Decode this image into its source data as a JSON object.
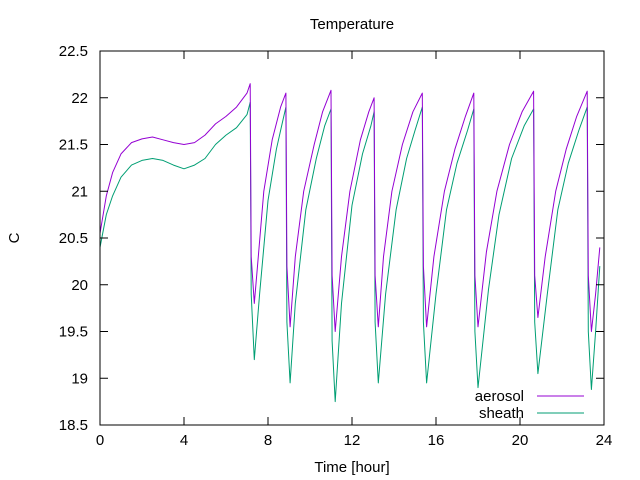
{
  "chart_data": {
    "type": "line",
    "title": "Temperature",
    "xlabel": "Time [hour]",
    "ylabel": "C",
    "xlim": [
      0,
      24
    ],
    "ylim": [
      18.5,
      22.5
    ],
    "xticks": [
      0,
      4,
      8,
      12,
      16,
      20,
      24
    ],
    "yticks": [
      18.5,
      19,
      19.5,
      20,
      20.5,
      21,
      21.5,
      22,
      22.5
    ],
    "xtick_labels": [
      "0",
      "4",
      "8",
      "12",
      "16",
      "20",
      "24"
    ],
    "ytick_labels": [
      "18.5",
      "19",
      "19.5",
      "20",
      "20.5",
      "21",
      "21.5",
      "22",
      "22.5"
    ],
    "grid": false,
    "legend_position": "bottom-right",
    "series": [
      {
        "name": "aerosol",
        "color": "#9400d3",
        "points": [
          [
            0.0,
            20.55
          ],
          [
            0.3,
            20.95
          ],
          [
            0.6,
            21.2
          ],
          [
            1.0,
            21.4
          ],
          [
            1.5,
            21.52
          ],
          [
            2.0,
            21.56
          ],
          [
            2.5,
            21.58
          ],
          [
            3.0,
            21.55
          ],
          [
            3.5,
            21.52
          ],
          [
            4.0,
            21.5
          ],
          [
            4.5,
            21.52
          ],
          [
            5.0,
            21.6
          ],
          [
            5.5,
            21.72
          ],
          [
            6.0,
            21.8
          ],
          [
            6.5,
            21.9
          ],
          [
            7.0,
            22.05
          ],
          [
            7.15,
            22.15
          ],
          [
            7.2,
            20.3
          ],
          [
            7.35,
            19.8
          ],
          [
            7.5,
            20.2
          ],
          [
            7.8,
            21.0
          ],
          [
            8.2,
            21.55
          ],
          [
            8.6,
            21.9
          ],
          [
            8.85,
            22.05
          ],
          [
            8.9,
            20.2
          ],
          [
            9.05,
            19.55
          ],
          [
            9.3,
            20.3
          ],
          [
            9.7,
            21.0
          ],
          [
            10.2,
            21.5
          ],
          [
            10.6,
            21.85
          ],
          [
            11.0,
            22.08
          ],
          [
            11.05,
            20.1
          ],
          [
            11.2,
            19.5
          ],
          [
            11.5,
            20.3
          ],
          [
            11.9,
            21.0
          ],
          [
            12.4,
            21.55
          ],
          [
            12.8,
            21.85
          ],
          [
            13.05,
            22.0
          ],
          [
            13.1,
            20.1
          ],
          [
            13.25,
            19.55
          ],
          [
            13.5,
            20.3
          ],
          [
            13.9,
            21.0
          ],
          [
            14.4,
            21.5
          ],
          [
            14.9,
            21.85
          ],
          [
            15.35,
            22.05
          ],
          [
            15.4,
            20.2
          ],
          [
            15.55,
            19.55
          ],
          [
            15.9,
            20.3
          ],
          [
            16.4,
            21.0
          ],
          [
            16.9,
            21.45
          ],
          [
            17.4,
            21.8
          ],
          [
            17.8,
            22.05
          ],
          [
            17.85,
            20.1
          ],
          [
            18.0,
            19.55
          ],
          [
            18.4,
            20.35
          ],
          [
            18.9,
            21.0
          ],
          [
            19.5,
            21.5
          ],
          [
            20.1,
            21.85
          ],
          [
            20.65,
            22.07
          ],
          [
            20.7,
            20.1
          ],
          [
            20.85,
            19.65
          ],
          [
            21.2,
            20.3
          ],
          [
            21.7,
            21.0
          ],
          [
            22.2,
            21.45
          ],
          [
            22.7,
            21.8
          ],
          [
            23.2,
            22.07
          ],
          [
            23.25,
            20.1
          ],
          [
            23.4,
            19.5
          ],
          [
            23.6,
            19.9
          ],
          [
            23.8,
            20.4
          ]
        ]
      },
      {
        "name": "sheath",
        "color": "#009e73",
        "points": [
          [
            0.0,
            20.4
          ],
          [
            0.3,
            20.75
          ],
          [
            0.6,
            20.95
          ],
          [
            1.0,
            21.15
          ],
          [
            1.5,
            21.28
          ],
          [
            2.0,
            21.33
          ],
          [
            2.5,
            21.35
          ],
          [
            3.0,
            21.33
          ],
          [
            3.5,
            21.28
          ],
          [
            4.0,
            21.24
          ],
          [
            4.5,
            21.28
          ],
          [
            5.0,
            21.35
          ],
          [
            5.5,
            21.5
          ],
          [
            6.0,
            21.6
          ],
          [
            6.5,
            21.68
          ],
          [
            7.0,
            21.82
          ],
          [
            7.15,
            21.95
          ],
          [
            7.2,
            19.9
          ],
          [
            7.35,
            19.2
          ],
          [
            7.6,
            19.9
          ],
          [
            8.0,
            20.9
          ],
          [
            8.4,
            21.45
          ],
          [
            8.7,
            21.75
          ],
          [
            8.85,
            21.9
          ],
          [
            8.9,
            19.6
          ],
          [
            9.05,
            18.95
          ],
          [
            9.3,
            19.8
          ],
          [
            9.8,
            20.8
          ],
          [
            10.3,
            21.35
          ],
          [
            10.7,
            21.7
          ],
          [
            11.0,
            21.88
          ],
          [
            11.05,
            19.4
          ],
          [
            11.2,
            18.75
          ],
          [
            11.5,
            19.8
          ],
          [
            12.0,
            20.85
          ],
          [
            12.5,
            21.4
          ],
          [
            12.9,
            21.7
          ],
          [
            13.05,
            21.85
          ],
          [
            13.1,
            19.6
          ],
          [
            13.25,
            18.95
          ],
          [
            13.6,
            19.9
          ],
          [
            14.1,
            20.8
          ],
          [
            14.6,
            21.35
          ],
          [
            15.0,
            21.65
          ],
          [
            15.35,
            21.9
          ],
          [
            15.4,
            19.6
          ],
          [
            15.55,
            18.95
          ],
          [
            16.0,
            19.9
          ],
          [
            16.5,
            20.8
          ],
          [
            17.0,
            21.3
          ],
          [
            17.5,
            21.65
          ],
          [
            17.8,
            21.88
          ],
          [
            17.85,
            19.5
          ],
          [
            18.0,
            18.9
          ],
          [
            18.5,
            19.95
          ],
          [
            19.0,
            20.75
          ],
          [
            19.6,
            21.35
          ],
          [
            20.2,
            21.7
          ],
          [
            20.65,
            21.88
          ],
          [
            20.7,
            19.6
          ],
          [
            20.85,
            19.05
          ],
          [
            21.3,
            19.9
          ],
          [
            21.8,
            20.8
          ],
          [
            22.3,
            21.3
          ],
          [
            22.8,
            21.65
          ],
          [
            23.2,
            21.9
          ],
          [
            23.25,
            19.5
          ],
          [
            23.4,
            18.88
          ],
          [
            23.6,
            19.5
          ],
          [
            23.8,
            20.2
          ]
        ]
      }
    ]
  }
}
